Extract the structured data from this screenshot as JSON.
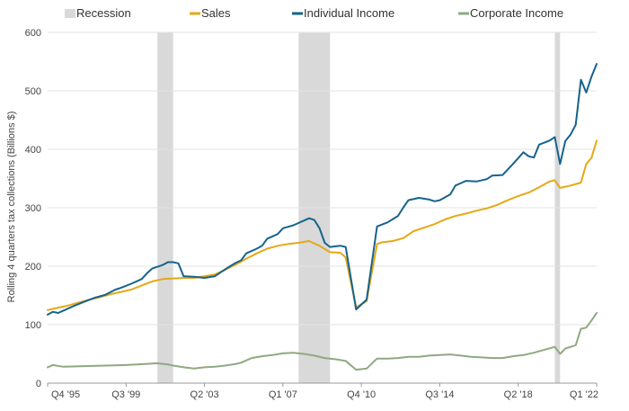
{
  "chart_data": {
    "type": "line",
    "title": "",
    "xlabel": "",
    "ylabel": "Rolling 4 quarters tax collections (Billions $)",
    "ylim": [
      0,
      600
    ],
    "yticks": [
      0,
      100,
      200,
      300,
      400,
      500,
      600
    ],
    "xlim": [
      "1995Q4",
      "2022Q1"
    ],
    "xticks": [
      {
        "quarter": "1995Q4",
        "label": "Q4 '95"
      },
      {
        "quarter": "1999Q3",
        "label": "Q3 '99"
      },
      {
        "quarter": "2003Q2",
        "label": "Q2 '03"
      },
      {
        "quarter": "2007Q1",
        "label": "Q1 '07"
      },
      {
        "quarter": "2010Q4",
        "label": "Q4 '10"
      },
      {
        "quarter": "2014Q3",
        "label": "Q3 '14"
      },
      {
        "quarter": "2018Q2",
        "label": "Q2 '18"
      },
      {
        "quarter": "2022Q1",
        "label": "Q1 '22"
      }
    ],
    "grid": "horizontal",
    "legend": {
      "position": "top",
      "entries": [
        {
          "name": "Recession",
          "color": "#d9d9d9",
          "kind": "band"
        },
        {
          "name": "Sales",
          "color": "#e6a817",
          "kind": "line"
        },
        {
          "name": "Individual Income",
          "color": "#16638c",
          "kind": "line"
        },
        {
          "name": "Corporate Income",
          "color": "#8fa981",
          "kind": "line"
        }
      ]
    },
    "recessions": [
      {
        "start": "2001Q1",
        "end": "2001Q4"
      },
      {
        "start": "2007Q4",
        "end": "2009Q2"
      },
      {
        "start": "2020Q1",
        "end": "2020Q2"
      }
    ],
    "series": [
      {
        "name": "Sales",
        "color": "#e6a817",
        "points": [
          [
            "1995Q4",
            125
          ],
          [
            "1996Q2",
            129
          ],
          [
            "1996Q4",
            133
          ],
          [
            "1997Q2",
            138
          ],
          [
            "1997Q4",
            143
          ],
          [
            "1998Q2",
            147
          ],
          [
            "1998Q4",
            152
          ],
          [
            "1999Q2",
            156
          ],
          [
            "1999Q4",
            160
          ],
          [
            "2000Q2",
            167
          ],
          [
            "2000Q4",
            174
          ],
          [
            "2001Q2",
            178
          ],
          [
            "2001Q4",
            179
          ],
          [
            "2002Q2",
            180
          ],
          [
            "2002Q4",
            180
          ],
          [
            "2003Q2",
            183
          ],
          [
            "2003Q4",
            186
          ],
          [
            "2004Q2",
            194
          ],
          [
            "2004Q4",
            203
          ],
          [
            "2005Q2",
            213
          ],
          [
            "2005Q4",
            222
          ],
          [
            "2006Q2",
            230
          ],
          [
            "2006Q4",
            235
          ],
          [
            "2007Q2",
            238
          ],
          [
            "2007Q4",
            240
          ],
          [
            "2008Q2",
            243
          ],
          [
            "2008Q4",
            235
          ],
          [
            "2009Q2",
            224
          ],
          [
            "2009Q4",
            223
          ],
          [
            "2010Q1",
            215
          ],
          [
            "2010Q3",
            130
          ],
          [
            "2010Q4",
            135
          ],
          [
            "2011Q1",
            140
          ],
          [
            "2011Q3",
            238
          ],
          [
            "2011Q4",
            241
          ],
          [
            "2012Q2",
            243
          ],
          [
            "2012Q4",
            248
          ],
          [
            "2013Q2",
            260
          ],
          [
            "2013Q4",
            266
          ],
          [
            "2014Q2",
            272
          ],
          [
            "2014Q4",
            280
          ],
          [
            "2015Q2",
            286
          ],
          [
            "2015Q4",
            290
          ],
          [
            "2016Q2",
            295
          ],
          [
            "2016Q4",
            299
          ],
          [
            "2017Q2",
            305
          ],
          [
            "2017Q4",
            313
          ],
          [
            "2018Q2",
            320
          ],
          [
            "2018Q4",
            326
          ],
          [
            "2019Q2",
            335
          ],
          [
            "2019Q4",
            345
          ],
          [
            "2020Q1",
            347
          ],
          [
            "2020Q2",
            334
          ],
          [
            "2020Q4",
            338
          ],
          [
            "2021Q2",
            343
          ],
          [
            "2021Q3",
            375
          ],
          [
            "2021Q4",
            385
          ],
          [
            "2022Q1",
            415
          ]
        ]
      },
      {
        "name": "Individual Income",
        "color": "#16638c",
        "points": [
          [
            "1995Q4",
            117
          ],
          [
            "1996Q1",
            122
          ],
          [
            "1996Q2",
            120
          ],
          [
            "1996Q3",
            124
          ],
          [
            "1997Q1",
            132
          ],
          [
            "1997Q3",
            139
          ],
          [
            "1998Q1",
            146
          ],
          [
            "1998Q3",
            151
          ],
          [
            "1999Q1",
            160
          ],
          [
            "1999Q2",
            163
          ],
          [
            "1999Q4",
            170
          ],
          [
            "2000Q2",
            178
          ],
          [
            "2000Q3",
            188
          ],
          [
            "2000Q4",
            196
          ],
          [
            "2001Q2",
            202
          ],
          [
            "2001Q3",
            207
          ],
          [
            "2001Q4",
            207
          ],
          [
            "2002Q1",
            205
          ],
          [
            "2002Q2",
            183
          ],
          [
            "2002Q4",
            182
          ],
          [
            "2003Q2",
            180
          ],
          [
            "2003Q4",
            183
          ],
          [
            "2004Q2",
            195
          ],
          [
            "2004Q4",
            206
          ],
          [
            "2005Q1",
            210
          ],
          [
            "2005Q2",
            222
          ],
          [
            "2005Q4",
            230
          ],
          [
            "2006Q1",
            235
          ],
          [
            "2006Q2",
            247
          ],
          [
            "2006Q4",
            255
          ],
          [
            "2007Q1",
            265
          ],
          [
            "2007Q3",
            270
          ],
          [
            "2008Q1",
            278
          ],
          [
            "2008Q2",
            282
          ],
          [
            "2008Q3",
            279
          ],
          [
            "2008Q4",
            265
          ],
          [
            "2009Q1",
            240
          ],
          [
            "2009Q2",
            233
          ],
          [
            "2009Q4",
            235
          ],
          [
            "2010Q1",
            233
          ],
          [
            "2010Q3",
            126
          ],
          [
            "2011Q1",
            143
          ],
          [
            "2011Q3",
            268
          ],
          [
            "2012Q1",
            275
          ],
          [
            "2012Q3",
            286
          ],
          [
            "2012Q4",
            300
          ],
          [
            "2013Q1",
            313
          ],
          [
            "2013Q3",
            317
          ],
          [
            "2014Q1",
            314
          ],
          [
            "2014Q2",
            311
          ],
          [
            "2014Q3",
            313
          ],
          [
            "2015Q1",
            323
          ],
          [
            "2015Q2",
            338
          ],
          [
            "2015Q4",
            346
          ],
          [
            "2016Q2",
            345
          ],
          [
            "2016Q4",
            349
          ],
          [
            "2017Q1",
            355
          ],
          [
            "2017Q3",
            356
          ],
          [
            "2018Q1",
            375
          ],
          [
            "2018Q3",
            395
          ],
          [
            "2018Q4",
            388
          ],
          [
            "2019Q1",
            386
          ],
          [
            "2019Q2",
            408
          ],
          [
            "2019Q4",
            415
          ],
          [
            "2020Q1",
            421
          ],
          [
            "2020Q2",
            375
          ],
          [
            "2020Q3",
            414
          ],
          [
            "2020Q4",
            425
          ],
          [
            "2021Q1",
            442
          ],
          [
            "2021Q2",
            519
          ],
          [
            "2021Q3",
            497
          ],
          [
            "2021Q4",
            524
          ],
          [
            "2022Q1",
            546
          ]
        ]
      },
      {
        "name": "Corporate Income",
        "color": "#8fa981",
        "points": [
          [
            "1995Q4",
            27
          ],
          [
            "1996Q1",
            31
          ],
          [
            "1996Q3",
            28
          ],
          [
            "1997Q3",
            29
          ],
          [
            "1998Q3",
            30
          ],
          [
            "1999Q3",
            31
          ],
          [
            "2000Q3",
            33
          ],
          [
            "2001Q1",
            34
          ],
          [
            "2001Q3",
            32
          ],
          [
            "2001Q4",
            30
          ],
          [
            "2002Q2",
            27
          ],
          [
            "2002Q4",
            25
          ],
          [
            "2003Q2",
            27
          ],
          [
            "2003Q4",
            28
          ],
          [
            "2004Q2",
            30
          ],
          [
            "2004Q4",
            33
          ],
          [
            "2005Q1",
            35
          ],
          [
            "2005Q3",
            43
          ],
          [
            "2006Q1",
            46
          ],
          [
            "2006Q3",
            48
          ],
          [
            "2007Q1",
            51
          ],
          [
            "2007Q3",
            52
          ],
          [
            "2008Q1",
            50
          ],
          [
            "2008Q3",
            47
          ],
          [
            "2009Q1",
            43
          ],
          [
            "2009Q3",
            41
          ],
          [
            "2010Q1",
            38
          ],
          [
            "2010Q3",
            23
          ],
          [
            "2011Q1",
            25
          ],
          [
            "2011Q3",
            42
          ],
          [
            "2012Q1",
            42
          ],
          [
            "2012Q3",
            43
          ],
          [
            "2013Q1",
            45
          ],
          [
            "2013Q3",
            45
          ],
          [
            "2014Q1",
            47
          ],
          [
            "2014Q3",
            48
          ],
          [
            "2015Q1",
            49
          ],
          [
            "2015Q3",
            47
          ],
          [
            "2016Q1",
            45
          ],
          [
            "2016Q3",
            44
          ],
          [
            "2017Q1",
            43
          ],
          [
            "2017Q3",
            43
          ],
          [
            "2018Q1",
            46
          ],
          [
            "2018Q3",
            48
          ],
          [
            "2019Q1",
            52
          ],
          [
            "2019Q3",
            57
          ],
          [
            "2020Q1",
            62
          ],
          [
            "2020Q2",
            50
          ],
          [
            "2020Q3",
            59
          ],
          [
            "2021Q1",
            65
          ],
          [
            "2021Q2",
            93
          ],
          [
            "2021Q3",
            95
          ],
          [
            "2021Q4",
            107
          ],
          [
            "2022Q1",
            120
          ]
        ]
      }
    ]
  }
}
